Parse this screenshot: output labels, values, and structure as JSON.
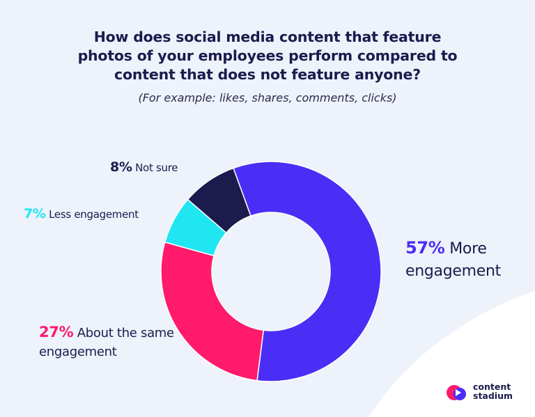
{
  "chart_data": {
    "type": "donut",
    "title": "How does social media content that feature photos of your employees perform compared to content that does not feature anyone?",
    "subtitle": "(For example: likes, shares, comments, clicks)",
    "categories": [
      "More engagement",
      "About the same engagement",
      "Less engagement",
      "Not sure"
    ],
    "values": [
      57,
      27,
      7,
      8
    ],
    "value_labels": [
      "57%",
      "27%",
      "7%",
      "8%"
    ],
    "colors": [
      "#4b2ef5",
      "#ff1a6c",
      "#20e6f2",
      "#1c1b4d"
    ]
  },
  "brand": {
    "lines": [
      "content",
      "stadium"
    ]
  }
}
